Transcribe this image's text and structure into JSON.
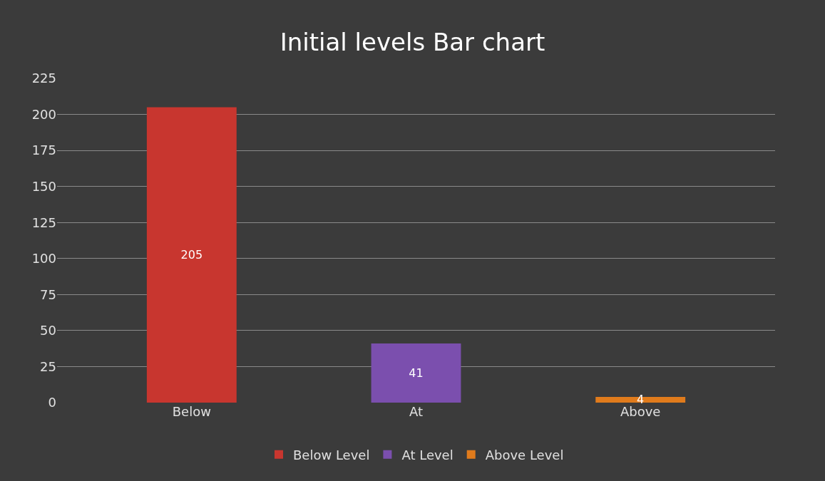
{
  "chart_data": {
    "type": "bar",
    "title": "Initial levels Bar chart",
    "categories": [
      "Below",
      "At",
      "Above"
    ],
    "series": [
      {
        "name": "Below Level",
        "color": "#c8362f",
        "values": [
          205,
          null,
          null
        ]
      },
      {
        "name": "At Level",
        "color": "#7b4fae",
        "values": [
          null,
          41,
          null
        ]
      },
      {
        "name": "Above Level",
        "color": "#e07b1c",
        "values": [
          null,
          null,
          4
        ]
      }
    ],
    "ylim": [
      0,
      225
    ],
    "yticks": [
      0,
      25,
      50,
      75,
      100,
      125,
      150,
      175,
      200,
      225
    ],
    "grid": "y",
    "legend": "bottom",
    "data_labels": true
  }
}
